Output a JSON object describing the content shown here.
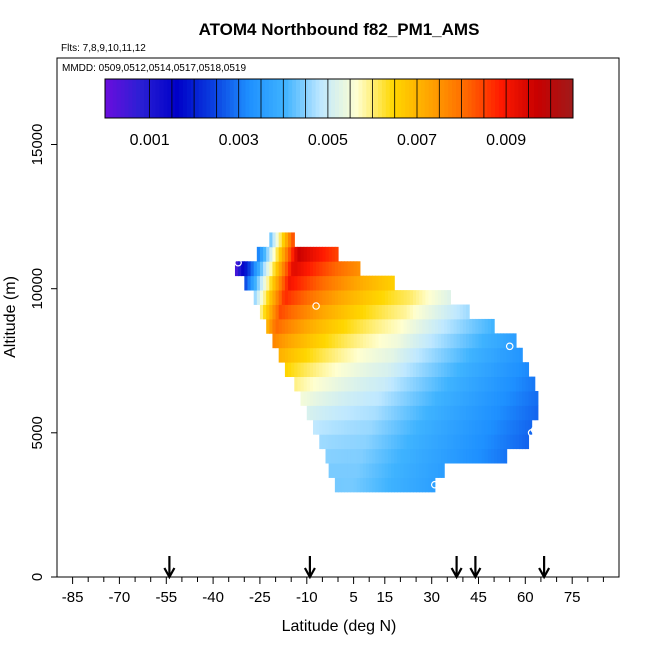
{
  "chart_data": {
    "type": "heatmap",
    "title": "ATOM4 Northbound f82_PM1_AMS",
    "flights_label": "Flts: 7,8,9,10,11,12",
    "dates_label": "MMDD: 0509,0512,0514,0517,0518,0519",
    "xlabel": "Latitude (deg N)",
    "ylabel": "Altitude (m)",
    "xlim": [
      -90,
      90
    ],
    "ylim": [
      0,
      18000
    ],
    "x_ticks": [
      -85,
      -70,
      -55,
      -40,
      -25,
      -10,
      5,
      15,
      30,
      45,
      60,
      75
    ],
    "y_ticks": [
      0,
      5000,
      10000,
      15000
    ],
    "y_tick_labels": [
      "0",
      "5000",
      "10000",
      "15000"
    ],
    "colorbar": {
      "min": 0.0,
      "max": 0.0105,
      "ticks": [
        0.001,
        0.003,
        0.005,
        0.007,
        0.009
      ],
      "tick_labels": [
        "0.001",
        "0.003",
        "0.005",
        "0.007",
        "0.009"
      ],
      "colors": [
        "#6a0dde",
        "#2a1fd4",
        "#0000c8",
        "#0a3fe0",
        "#1e90ff",
        "#3fb3ff",
        "#bfe8ff",
        "#ffffd0",
        "#ffd700",
        "#ffa500",
        "#ff6a00",
        "#ff1a00",
        "#c80000",
        "#a01a1a"
      ]
    },
    "flight_arrows_lat": [
      -54,
      -9,
      38,
      44,
      66
    ],
    "layers": [
      {
        "alt": 3200,
        "lat_min": -1,
        "lat_max": 31
      },
      {
        "alt": 3700,
        "lat_min": -3,
        "lat_max": 34
      },
      {
        "alt": 4200,
        "lat_min": -4,
        "lat_max": 54
      },
      {
        "alt": 4700,
        "lat_min": -6,
        "lat_max": 61
      },
      {
        "alt": 5200,
        "lat_min": -8,
        "lat_max": 62
      },
      {
        "alt": 5700,
        "lat_min": -10,
        "lat_max": 64
      },
      {
        "alt": 6200,
        "lat_min": -12,
        "lat_max": 64
      },
      {
        "alt": 6700,
        "lat_min": -14,
        "lat_max": 63
      },
      {
        "alt": 7200,
        "lat_min": -17,
        "lat_max": 61
      },
      {
        "alt": 7700,
        "lat_min": -19,
        "lat_max": 59
      },
      {
        "alt": 8200,
        "lat_min": -21,
        "lat_max": 57
      },
      {
        "alt": 8700,
        "lat_min": -23,
        "lat_max": 50
      },
      {
        "alt": 9200,
        "lat_min": -25,
        "lat_max": 42
      },
      {
        "alt": 9700,
        "lat_min": -27,
        "lat_max": 36
      },
      {
        "alt": 10200,
        "lat_min": -30,
        "lat_max": 18
      },
      {
        "alt": 10700,
        "lat_min": -33,
        "lat_max": 7
      },
      {
        "alt": 11200,
        "lat_min": -26,
        "lat_max": 0
      },
      {
        "alt": 11700,
        "lat_min": -22,
        "lat_max": -14
      }
    ],
    "markers": [
      {
        "lat": -7,
        "alt": 9400
      },
      {
        "lat": 55,
        "alt": 8000
      },
      {
        "lat": 62,
        "alt": 5000
      },
      {
        "lat": 63,
        "alt": 5100
      },
      {
        "lat": 31,
        "alt": 3200
      },
      {
        "lat": -32,
        "alt": 10900
      }
    ]
  }
}
